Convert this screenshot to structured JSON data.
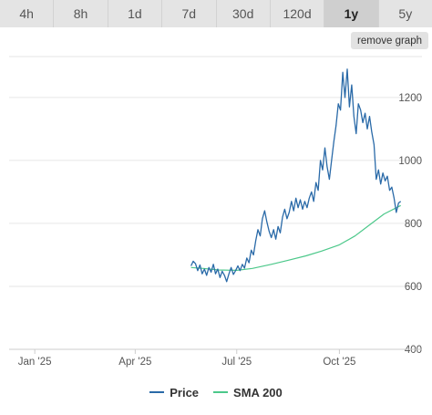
{
  "tabs": [
    {
      "label": "4h",
      "active": false
    },
    {
      "label": "8h",
      "active": false
    },
    {
      "label": "1d",
      "active": false
    },
    {
      "label": "7d",
      "active": false
    },
    {
      "label": "30d",
      "active": false
    },
    {
      "label": "120d",
      "active": false
    },
    {
      "label": "1y",
      "active": true
    },
    {
      "label": "5y",
      "active": false
    }
  ],
  "remove_graph_label": "remove graph",
  "colors": {
    "price": "#2a6aa8",
    "sma": "#4cc88a",
    "grid": "#e6e6e6",
    "tab_active": "#cfcfcf"
  },
  "chart_data": {
    "type": "line",
    "ylim": [
      400,
      1330
    ],
    "y_ticks": [
      400,
      600,
      800,
      1000,
      1200
    ],
    "x_ticks": [
      {
        "label": "Jan '25",
        "date": "2025-01-01"
      },
      {
        "label": "Apr '25",
        "date": "2025-04-01"
      },
      {
        "label": "Jul '25",
        "date": "2025-07-01"
      },
      {
        "label": "Oct '25",
        "date": "2025-10-01"
      }
    ],
    "xlim": [
      "2024-12-09",
      "2025-12-14"
    ],
    "grid": "horizontal",
    "legend": "bottom-center",
    "series": [
      {
        "name": "Price",
        "color": "#2a6aa8",
        "points": [
          [
            "2025-05-21",
            665
          ],
          [
            "2025-05-23",
            680
          ],
          [
            "2025-05-25",
            672
          ],
          [
            "2025-05-27",
            650
          ],
          [
            "2025-05-29",
            668
          ],
          [
            "2025-05-31",
            640
          ],
          [
            "2025-06-02",
            655
          ],
          [
            "2025-06-04",
            635
          ],
          [
            "2025-06-06",
            660
          ],
          [
            "2025-06-08",
            645
          ],
          [
            "2025-06-10",
            670
          ],
          [
            "2025-06-12",
            640
          ],
          [
            "2025-06-14",
            655
          ],
          [
            "2025-06-16",
            628
          ],
          [
            "2025-06-18",
            648
          ],
          [
            "2025-06-20",
            635
          ],
          [
            "2025-06-22",
            615
          ],
          [
            "2025-06-24",
            640
          ],
          [
            "2025-06-26",
            660
          ],
          [
            "2025-06-28",
            638
          ],
          [
            "2025-06-30",
            650
          ],
          [
            "2025-07-02",
            665
          ],
          [
            "2025-07-04",
            650
          ],
          [
            "2025-07-06",
            670
          ],
          [
            "2025-07-08",
            658
          ],
          [
            "2025-07-10",
            690
          ],
          [
            "2025-07-12",
            675
          ],
          [
            "2025-07-14",
            715
          ],
          [
            "2025-07-16",
            700
          ],
          [
            "2025-07-18",
            745
          ],
          [
            "2025-07-20",
            780
          ],
          [
            "2025-07-22",
            760
          ],
          [
            "2025-07-24",
            815
          ],
          [
            "2025-07-26",
            840
          ],
          [
            "2025-07-28",
            805
          ],
          [
            "2025-07-30",
            775
          ],
          [
            "2025-08-01",
            755
          ],
          [
            "2025-08-03",
            780
          ],
          [
            "2025-08-05",
            750
          ],
          [
            "2025-08-07",
            790
          ],
          [
            "2025-08-09",
            770
          ],
          [
            "2025-08-11",
            820
          ],
          [
            "2025-08-13",
            845
          ],
          [
            "2025-08-15",
            815
          ],
          [
            "2025-08-17",
            835
          ],
          [
            "2025-08-19",
            870
          ],
          [
            "2025-08-21",
            840
          ],
          [
            "2025-08-23",
            880
          ],
          [
            "2025-08-25",
            850
          ],
          [
            "2025-08-27",
            875
          ],
          [
            "2025-08-29",
            845
          ],
          [
            "2025-08-31",
            870
          ],
          [
            "2025-09-02",
            850
          ],
          [
            "2025-09-04",
            880
          ],
          [
            "2025-09-06",
            900
          ],
          [
            "2025-09-08",
            870
          ],
          [
            "2025-09-10",
            930
          ],
          [
            "2025-09-12",
            905
          ],
          [
            "2025-09-14",
            1000
          ],
          [
            "2025-09-16",
            970
          ],
          [
            "2025-09-18",
            1040
          ],
          [
            "2025-09-20",
            980
          ],
          [
            "2025-09-22",
            940
          ],
          [
            "2025-09-24",
            1000
          ],
          [
            "2025-09-26",
            1060
          ],
          [
            "2025-09-28",
            1110
          ],
          [
            "2025-09-30",
            1180
          ],
          [
            "2025-10-02",
            1160
          ],
          [
            "2025-10-04",
            1280
          ],
          [
            "2025-10-06",
            1200
          ],
          [
            "2025-10-08",
            1290
          ],
          [
            "2025-10-10",
            1170
          ],
          [
            "2025-10-12",
            1240
          ],
          [
            "2025-10-14",
            1140
          ],
          [
            "2025-10-16",
            1085
          ],
          [
            "2025-10-18",
            1180
          ],
          [
            "2025-10-20",
            1160
          ],
          [
            "2025-10-22",
            1120
          ],
          [
            "2025-10-24",
            1150
          ],
          [
            "2025-10-26",
            1100
          ],
          [
            "2025-10-28",
            1140
          ],
          [
            "2025-10-30",
            1090
          ],
          [
            "2025-11-01",
            1050
          ],
          [
            "2025-11-03",
            940
          ],
          [
            "2025-11-05",
            970
          ],
          [
            "2025-11-07",
            925
          ],
          [
            "2025-11-09",
            960
          ],
          [
            "2025-11-11",
            935
          ],
          [
            "2025-11-13",
            950
          ],
          [
            "2025-11-15",
            905
          ],
          [
            "2025-11-17",
            915
          ],
          [
            "2025-11-19",
            880
          ],
          [
            "2025-11-21",
            835
          ],
          [
            "2025-11-23",
            865
          ],
          [
            "2025-11-25",
            870
          ]
        ]
      },
      {
        "name": "SMA 200",
        "color": "#4cc88a",
        "points": [
          [
            "2025-05-21",
            660
          ],
          [
            "2025-06-01",
            657
          ],
          [
            "2025-06-15",
            652
          ],
          [
            "2025-07-01",
            651
          ],
          [
            "2025-07-15",
            657
          ],
          [
            "2025-08-01",
            670
          ],
          [
            "2025-08-15",
            682
          ],
          [
            "2025-09-01",
            697
          ],
          [
            "2025-09-15",
            712
          ],
          [
            "2025-10-01",
            732
          ],
          [
            "2025-10-15",
            760
          ],
          [
            "2025-11-01",
            806
          ],
          [
            "2025-11-10",
            830
          ],
          [
            "2025-11-25",
            857
          ]
        ]
      }
    ]
  }
}
